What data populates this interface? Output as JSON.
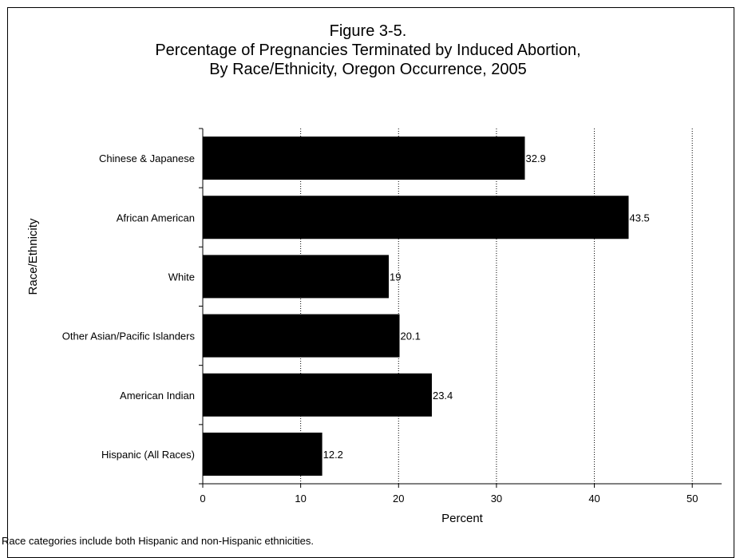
{
  "chart_data": {
    "type": "bar",
    "orientation": "horizontal",
    "title_lines": [
      "Figure 3-5.",
      "Percentage of Pregnancies Terminated by Induced Abortion,",
      "By Race/Ethnicity, Oregon Occurrence, 2005"
    ],
    "categories": [
      "Chinese & Japanese",
      "African American",
      "White",
      "Other Asian/Pacific Islanders",
      "American Indian",
      "Hispanic (All Races)"
    ],
    "values": [
      32.9,
      43.5,
      19,
      20.1,
      23.4,
      12.2
    ],
    "data_labels": [
      "32.9",
      "43.5",
      "19",
      "20.1",
      "23.4",
      "12.2"
    ],
    "xlabel": "Percent",
    "ylabel": "Race/Ethnicity",
    "xlim": [
      0,
      53
    ],
    "xticks": [
      "0",
      "10",
      "20",
      "30",
      "40",
      "50"
    ],
    "xtick_values": [
      0,
      10,
      20,
      30,
      40,
      50
    ],
    "grid": "vertical dotted",
    "bar_color": "#000000"
  },
  "footnote": "Race categories include both Hispanic and non-Hispanic ethnicities."
}
